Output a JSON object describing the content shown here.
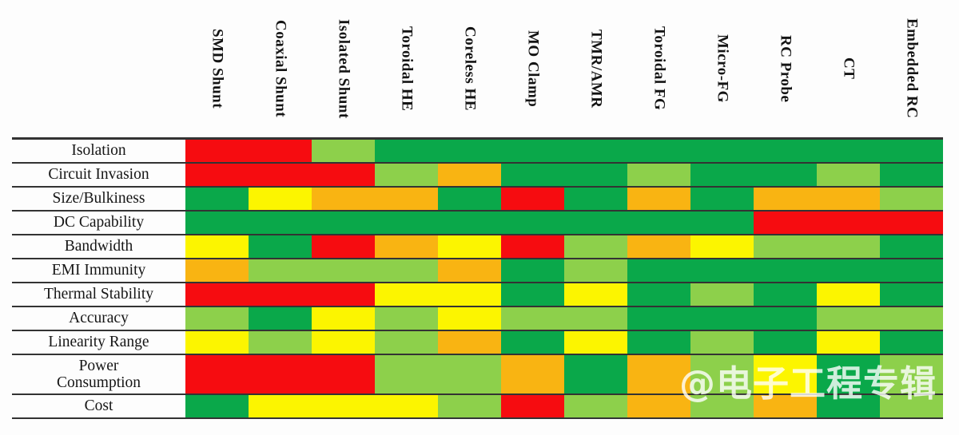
{
  "chart_data": {
    "type": "heatmap",
    "title": "",
    "columns": [
      "SMD Shunt",
      "Coaxial Shunt",
      "Isolated Shunt",
      "Toroidal HE",
      "Coreless HE",
      "MO Clamp",
      "TMR/AMR",
      "Toroidal FG",
      "Micro-FG",
      "RC Probe",
      "CT",
      "Embedded RC"
    ],
    "rows": [
      {
        "label": "Isolation",
        "tall": false,
        "ratings": [
          "red",
          "red",
          "light-green",
          "green",
          "green",
          "green",
          "green",
          "green",
          "green",
          "green",
          "green",
          "green"
        ]
      },
      {
        "label": "Circuit Invasion",
        "tall": false,
        "ratings": [
          "red",
          "red",
          "red",
          "light-green",
          "orange",
          "green",
          "green",
          "light-green",
          "green",
          "green",
          "light-green",
          "green"
        ]
      },
      {
        "label": "Size/Bulkiness",
        "tall": false,
        "ratings": [
          "green",
          "yellow",
          "orange",
          "orange",
          "green",
          "red",
          "green",
          "orange",
          "green",
          "orange",
          "orange",
          "light-green"
        ]
      },
      {
        "label": "DC Capability",
        "tall": false,
        "ratings": [
          "green",
          "green",
          "green",
          "green",
          "green",
          "green",
          "green",
          "green",
          "green",
          "red",
          "red",
          "red"
        ]
      },
      {
        "label": "Bandwidth",
        "tall": false,
        "ratings": [
          "yellow",
          "green",
          "red",
          "orange",
          "yellow",
          "red",
          "light-green",
          "orange",
          "yellow",
          "light-green",
          "light-green",
          "green"
        ]
      },
      {
        "label": "EMI Immunity",
        "tall": false,
        "ratings": [
          "orange",
          "light-green",
          "light-green",
          "light-green",
          "orange",
          "green",
          "light-green",
          "green",
          "green",
          "green",
          "green",
          "green"
        ]
      },
      {
        "label": "Thermal Stability",
        "tall": false,
        "ratings": [
          "red",
          "red",
          "red",
          "yellow",
          "yellow",
          "green",
          "yellow",
          "green",
          "light-green",
          "green",
          "yellow",
          "green"
        ]
      },
      {
        "label": "Accuracy",
        "tall": false,
        "ratings": [
          "light-green",
          "green",
          "yellow",
          "light-green",
          "yellow",
          "light-green",
          "light-green",
          "green",
          "green",
          "green",
          "light-green",
          "light-green"
        ]
      },
      {
        "label": "Linearity Range",
        "tall": false,
        "ratings": [
          "yellow",
          "light-green",
          "yellow",
          "light-green",
          "orange",
          "green",
          "yellow",
          "green",
          "light-green",
          "green",
          "yellow",
          "green"
        ]
      },
      {
        "label": "Power Consumption",
        "tall": true,
        "ratings": [
          "red",
          "red",
          "red",
          "light-green",
          "light-green",
          "orange",
          "green",
          "orange",
          "light-green",
          "yellow",
          "green",
          "light-green"
        ]
      },
      {
        "label": "Cost",
        "tall": false,
        "ratings": [
          "green",
          "yellow",
          "yellow",
          "yellow",
          "light-green",
          "red",
          "light-green",
          "orange",
          "light-green",
          "orange",
          "green",
          "light-green"
        ]
      }
    ],
    "palette": {
      "red": "#F60C10",
      "orange": "#F9B412",
      "yellow": "#FCF500",
      "light-green": "#8DD04B",
      "green": "#0AA84A"
    },
    "layout": {
      "legend": "none",
      "grid": "horizontal-lines-only"
    }
  },
  "watermark": {
    "text": "@电子工程专辑"
  }
}
